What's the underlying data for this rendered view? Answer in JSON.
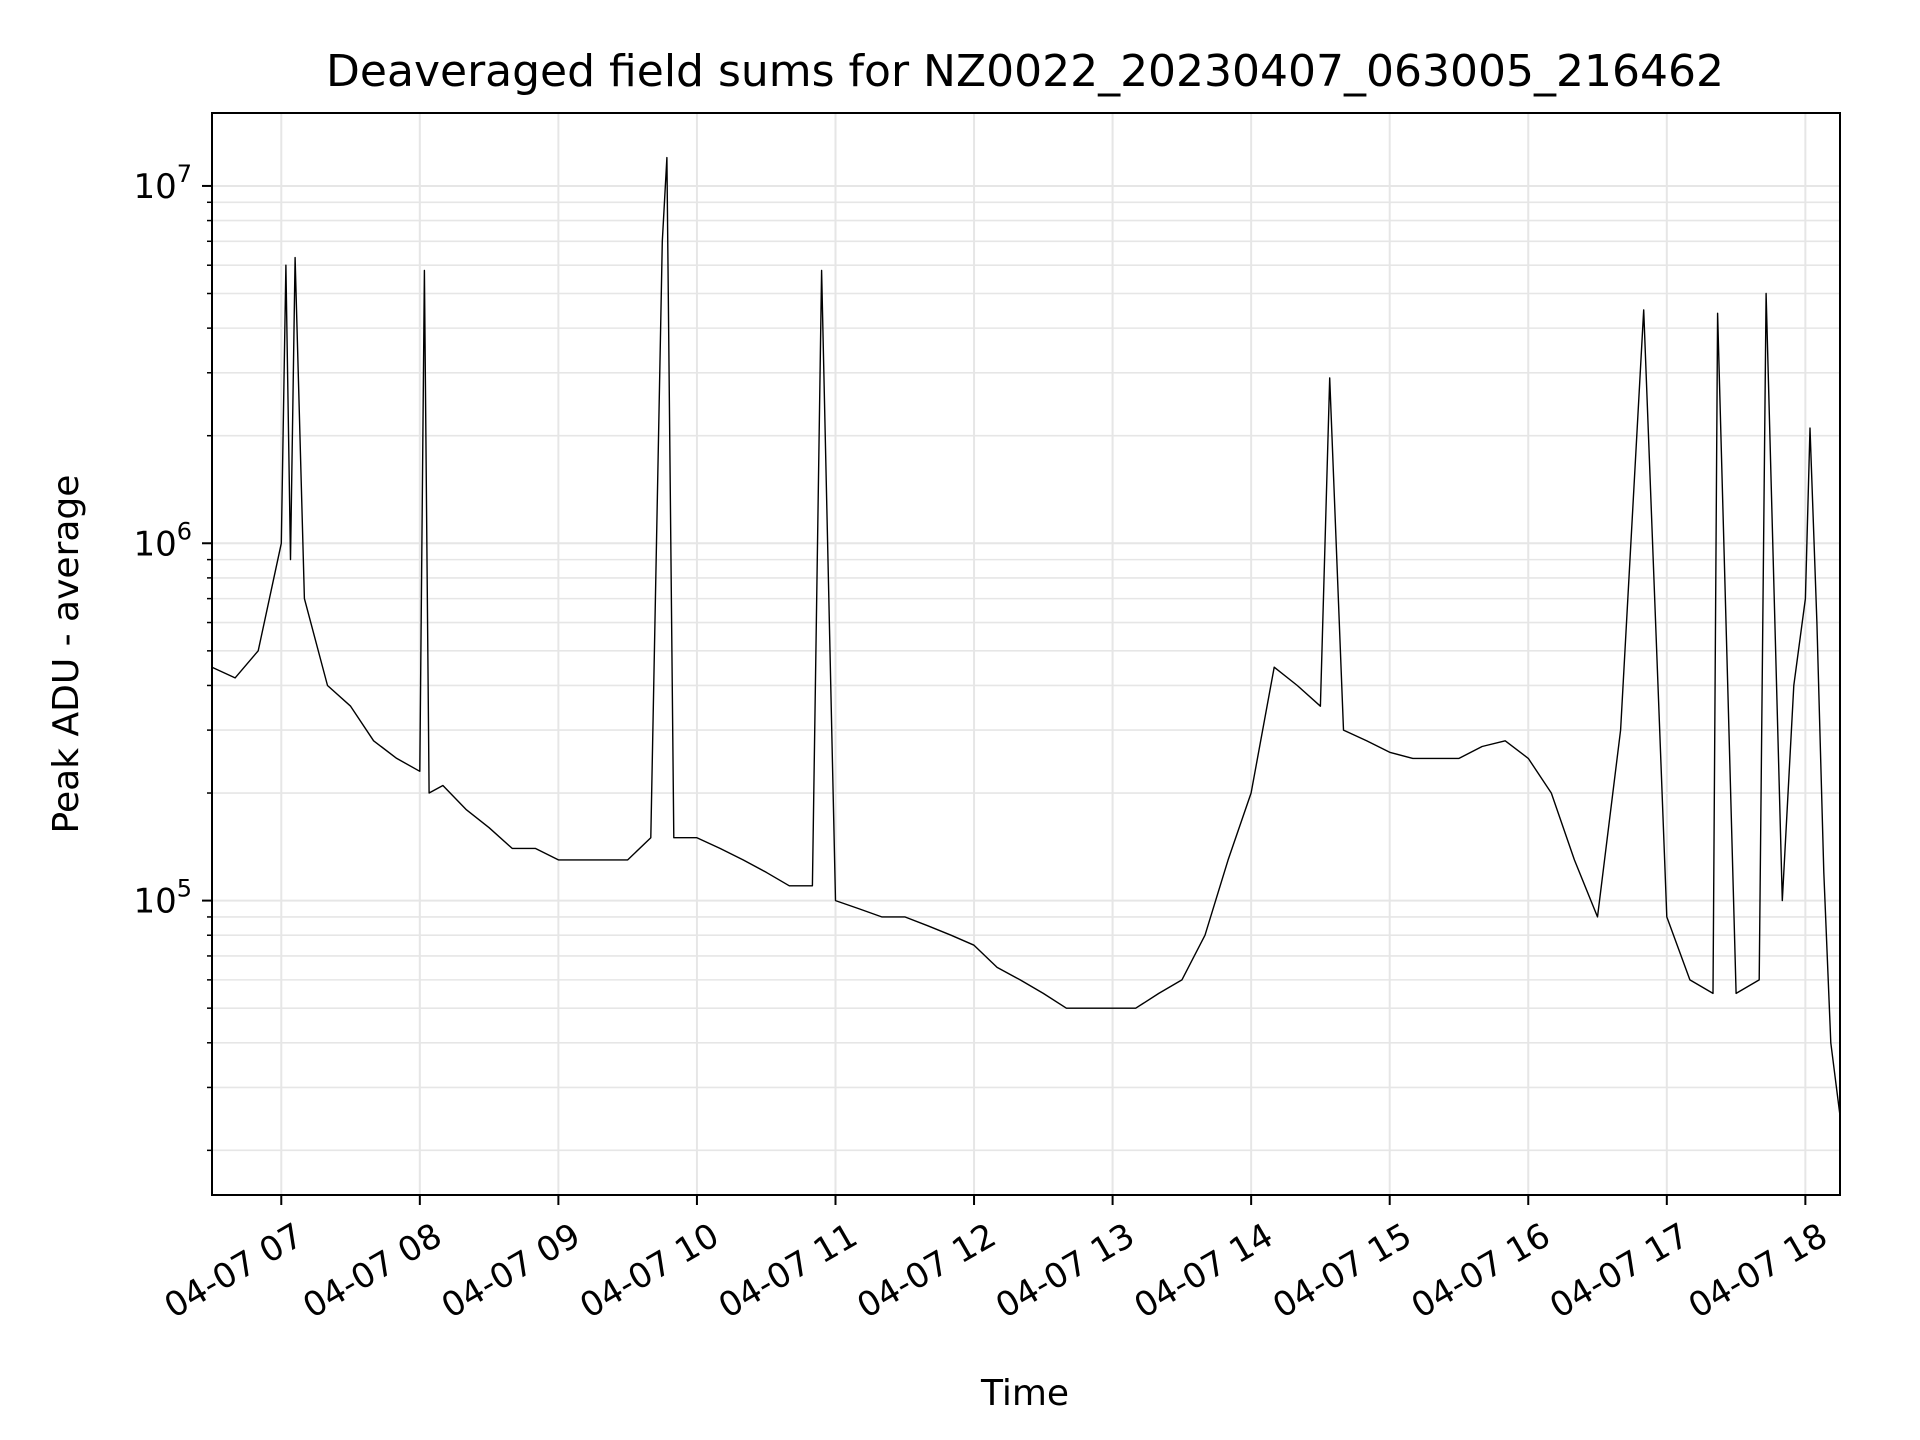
{
  "chart_data": {
    "type": "line",
    "title": "Deaveraged field sums for NZ0022_20230407_063005_216462",
    "xlabel": "Time",
    "ylabel": "Peak ADU - average",
    "yscale": "log",
    "ylim": [
      15000,
      16000000
    ],
    "xlim": [
      "2023-04-07 06:30",
      "2023-04-07 18:15"
    ],
    "grid": true,
    "line_color": "#000000",
    "grid_color": "#e6e6e6",
    "x_ticks": [
      {
        "value": "2023-04-07 07:00",
        "label": "04-07 07"
      },
      {
        "value": "2023-04-07 08:00",
        "label": "04-07 08"
      },
      {
        "value": "2023-04-07 09:00",
        "label": "04-07 09"
      },
      {
        "value": "2023-04-07 10:00",
        "label": "04-07 10"
      },
      {
        "value": "2023-04-07 11:00",
        "label": "04-07 11"
      },
      {
        "value": "2023-04-07 12:00",
        "label": "04-07 12"
      },
      {
        "value": "2023-04-07 13:00",
        "label": "04-07 13"
      },
      {
        "value": "2023-04-07 14:00",
        "label": "04-07 14"
      },
      {
        "value": "2023-04-07 15:00",
        "label": "04-07 15"
      },
      {
        "value": "2023-04-07 16:00",
        "label": "04-07 16"
      },
      {
        "value": "2023-04-07 17:00",
        "label": "04-07 17"
      },
      {
        "value": "2023-04-07 18:00",
        "label": "04-07 18"
      }
    ],
    "y_ticks": [
      {
        "value": 100000,
        "base": "10",
        "exp": "5"
      },
      {
        "value": 1000000,
        "base": "10",
        "exp": "6"
      },
      {
        "value": 10000000,
        "base": "10",
        "exp": "7"
      }
    ],
    "series": [
      {
        "x": [
          "06:30",
          "06:40",
          "06:50",
          "07:00",
          "07:02",
          "07:04",
          "07:06",
          "07:10",
          "07:20",
          "07:30",
          "07:40",
          "07:50",
          "08:00",
          "08:02",
          "08:04",
          "08:10",
          "08:20",
          "08:30",
          "08:40",
          "08:50",
          "09:00",
          "09:10",
          "09:20",
          "09:30",
          "09:40",
          "09:45",
          "09:47",
          "09:50",
          "10:00",
          "10:10",
          "10:20",
          "10:30",
          "10:40",
          "10:50",
          "10:54",
          "11:00",
          "11:10",
          "11:20",
          "11:30",
          "11:40",
          "11:50",
          "12:00",
          "12:10",
          "12:20",
          "12:30",
          "12:40",
          "12:50",
          "13:00",
          "13:10",
          "13:20",
          "13:30",
          "13:40",
          "13:50",
          "14:00",
          "14:10",
          "14:20",
          "14:30",
          "14:34",
          "14:40",
          "14:50",
          "15:00",
          "15:10",
          "15:20",
          "15:30",
          "15:40",
          "15:50",
          "16:00",
          "16:10",
          "16:20",
          "16:30",
          "16:40",
          "16:50",
          "17:00",
          "17:10",
          "17:20",
          "17:22",
          "17:30",
          "17:40",
          "17:43",
          "17:50",
          "17:55",
          "18:00",
          "18:02",
          "18:05",
          "18:08",
          "18:11",
          "18:15"
        ],
        "y": [
          450000,
          420000,
          500000,
          1000000,
          6000000,
          900000,
          6300000,
          700000,
          400000,
          350000,
          280000,
          250000,
          230000,
          5800000,
          200000,
          210000,
          180000,
          160000,
          140000,
          140000,
          130000,
          130000,
          130000,
          130000,
          150000,
          7000000,
          12000000,
          150000,
          150000,
          140000,
          130000,
          120000,
          110000,
          110000,
          5800000,
          100000,
          95000,
          90000,
          90000,
          85000,
          80000,
          75000,
          65000,
          60000,
          55000,
          50000,
          50000,
          50000,
          50000,
          55000,
          60000,
          80000,
          130000,
          200000,
          450000,
          400000,
          350000,
          2900000,
          300000,
          280000,
          260000,
          250000,
          250000,
          250000,
          270000,
          280000,
          250000,
          200000,
          130000,
          90000,
          300000,
          4500000,
          90000,
          60000,
          55000,
          4400000,
          55000,
          60000,
          5000000,
          100000,
          400000,
          700000,
          2100000,
          600000,
          120000,
          40000,
          25000
        ]
      }
    ]
  }
}
